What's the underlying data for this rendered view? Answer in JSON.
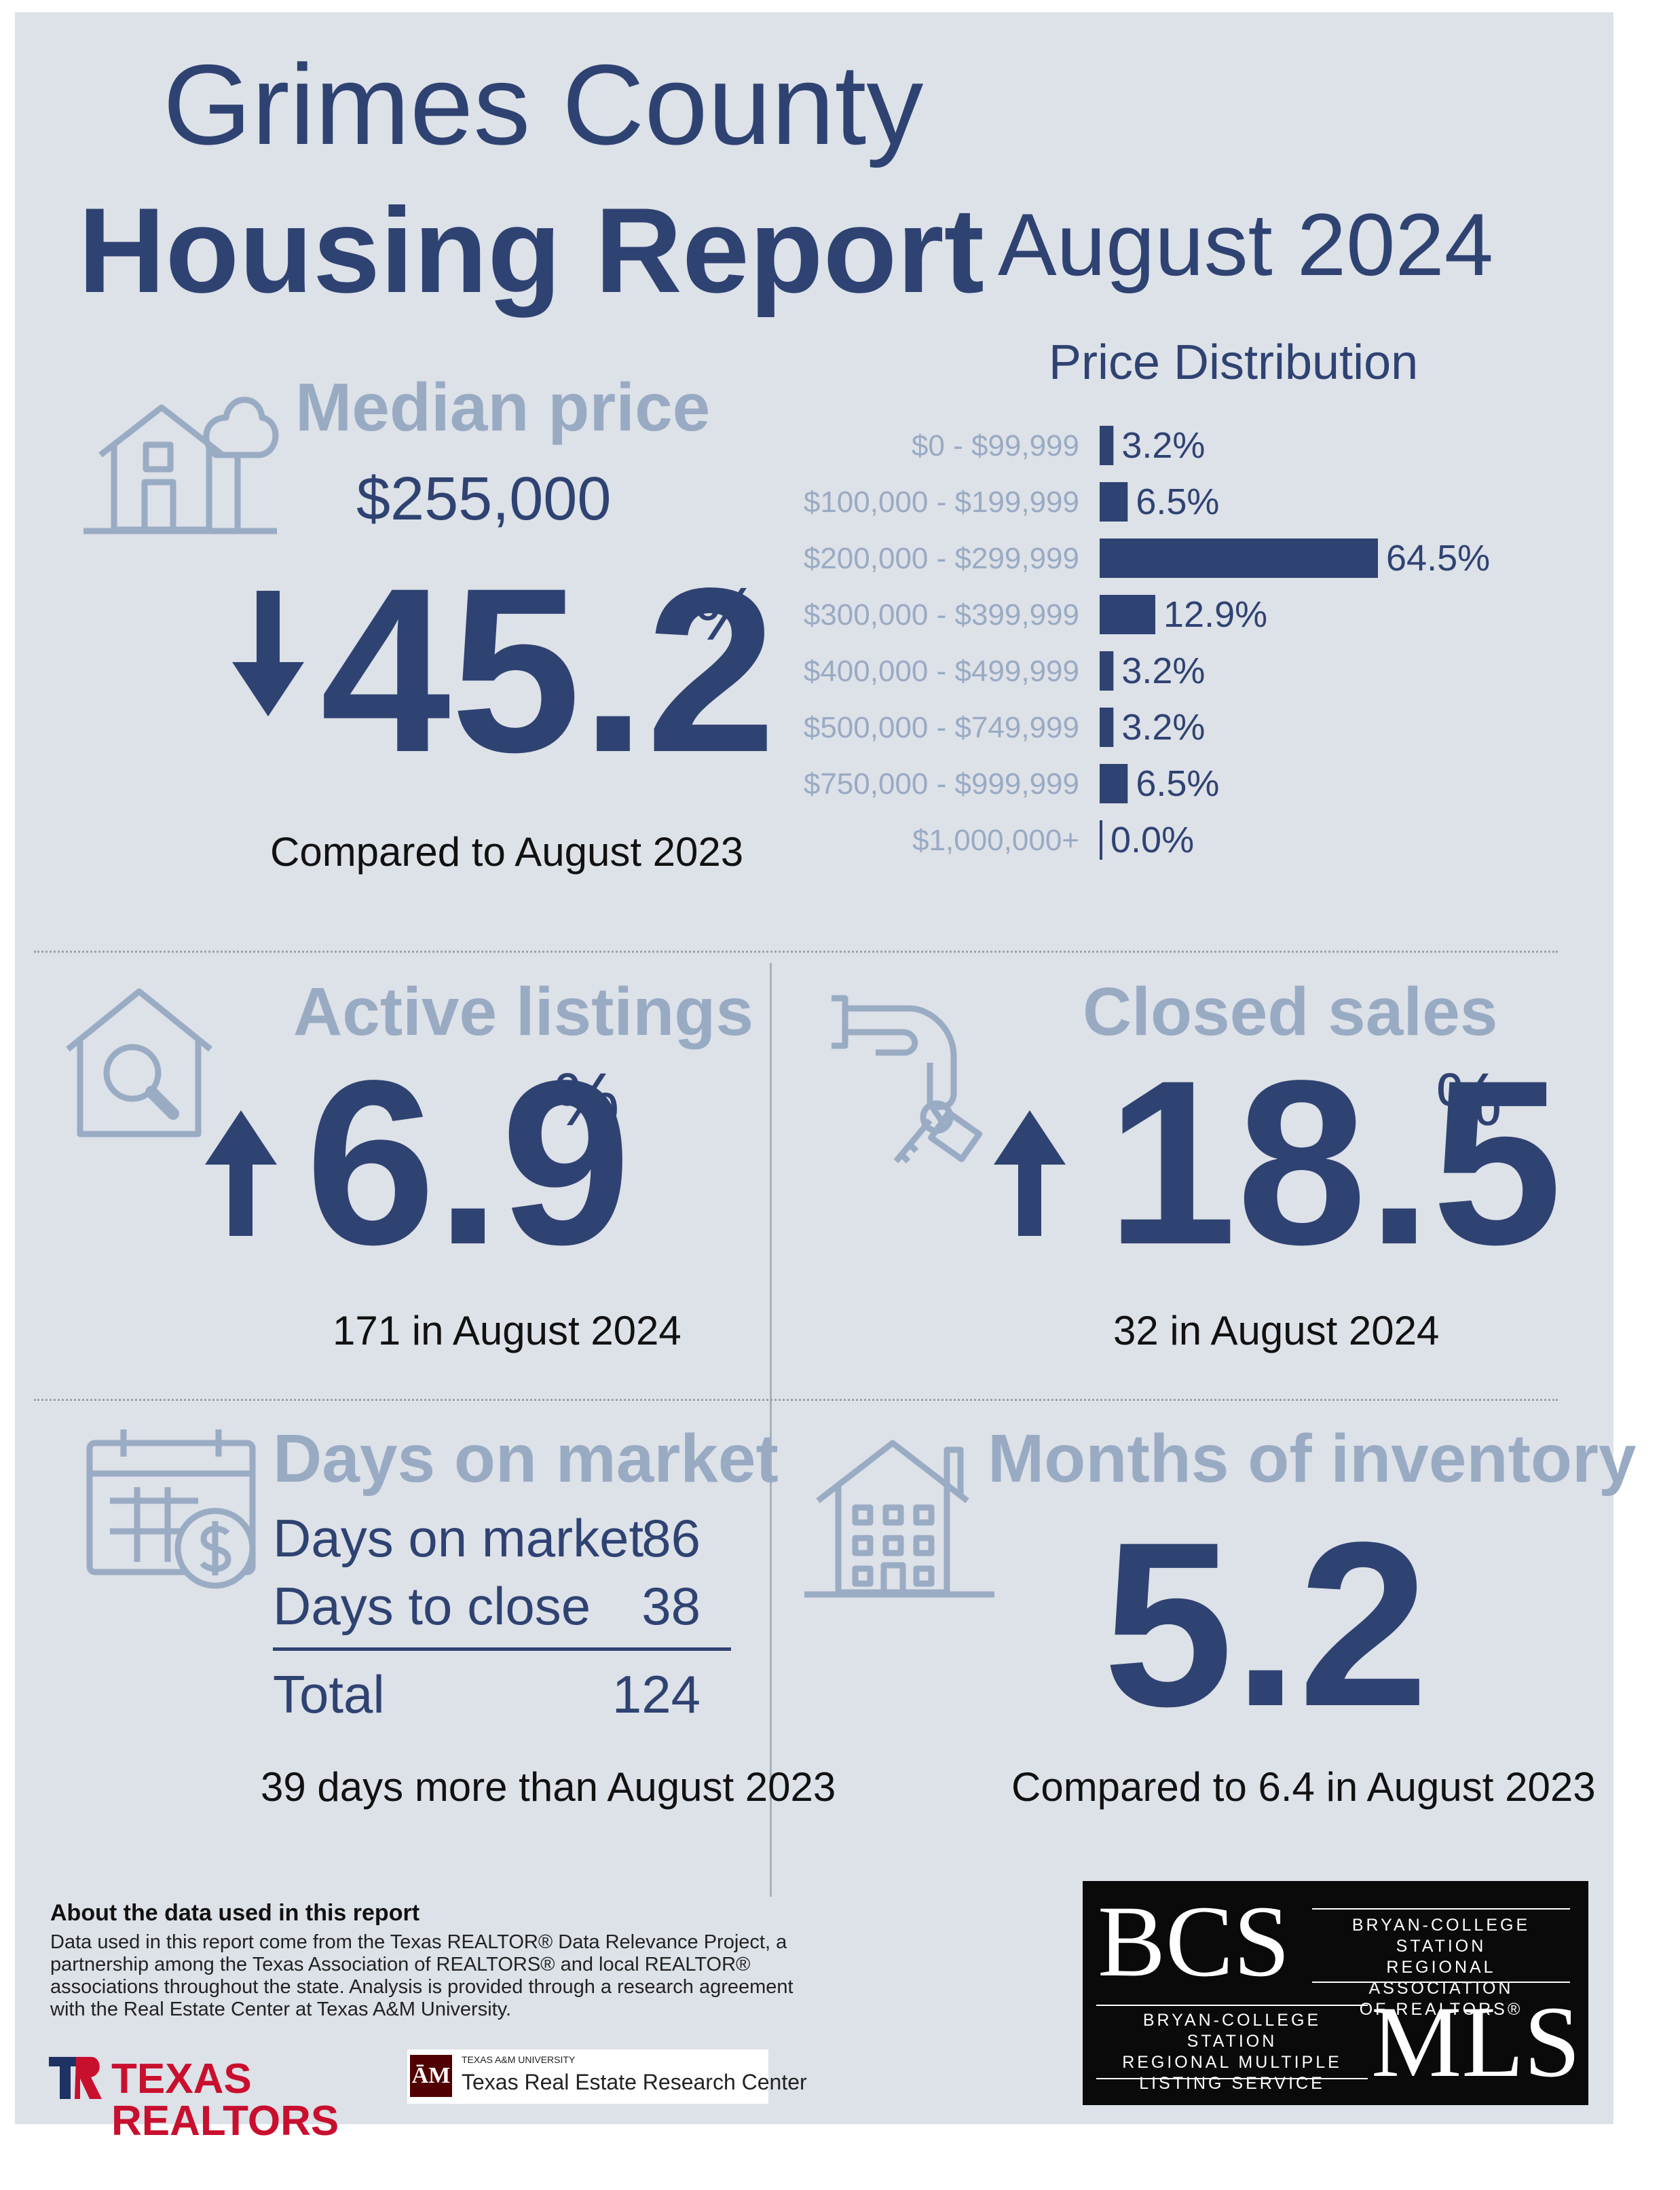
{
  "header": {
    "title_line1": "Grimes County",
    "title_line2": "Housing Report",
    "period": "August 2024"
  },
  "median_price": {
    "label": "Median price",
    "value": "$255,000",
    "change": "45.2",
    "percent_sign": "%",
    "direction": "down",
    "comparison": "Compared to August 2023"
  },
  "price_distribution": {
    "title": "Price Distribution",
    "bar_color": "#2f4372"
  },
  "chart_data": {
    "type": "bar",
    "orientation": "horizontal",
    "title": "Price Distribution",
    "categories": [
      "$0 - $99,999",
      "$100,000 - $199,999",
      "$200,000 - $299,999",
      "$300,000 - $399,999",
      "$400,000 - $499,999",
      "$500,000 - $749,999",
      "$750,000 - $999,999",
      "$1,000,000+"
    ],
    "values": [
      3.2,
      6.5,
      64.5,
      12.9,
      3.2,
      3.2,
      6.5,
      0.0
    ],
    "value_labels": [
      "3.2%",
      "6.5%",
      "64.5%",
      "12.9%",
      "3.2%",
      "3.2%",
      "6.5%",
      "0.0%"
    ],
    "xlim": [
      0,
      64.5
    ],
    "grid": false
  },
  "active_listings": {
    "label": "Active listings",
    "change": "6.9",
    "percent_sign": "%",
    "direction": "up",
    "detail": "171 in August 2024"
  },
  "closed_sales": {
    "label": "Closed sales",
    "change": "18.5",
    "percent_sign": "%",
    "direction": "up",
    "detail": "32 in August 2024"
  },
  "days_on_market": {
    "label": "Days on market",
    "rows": [
      {
        "label": "Days on market",
        "value": "86"
      },
      {
        "label": "Days to close",
        "value": "38"
      }
    ],
    "total_label": "Total",
    "total_value": "124",
    "comparison": "39 days more than August 2023"
  },
  "months_inventory": {
    "label": "Months of inventory",
    "value": "5.2",
    "comparison": "Compared to 6.4 in August 2023"
  },
  "about": {
    "heading": "About the data used in this report",
    "line1": "Data used in this report come from the Texas REALTOR® Data Relevance Project, a",
    "line2": "partnership among the Texas Association of REALTORS® and local REALTOR®",
    "line3": "associations throughout the state. Analysis is provided through a research agreement",
    "line4": "with the Real Estate Center at Texas A&M University."
  },
  "logos": {
    "texas_realtors": "TEXAS REALTORS",
    "tamu_small": "TEXAS A&M UNIVERSITY",
    "tamu_center": "Texas Real Estate Research Center",
    "bcs": "BCS",
    "bcs_assoc_1": "BRYAN-COLLEGE STATION",
    "bcs_assoc_2": "REGIONAL ASSOCIATION",
    "bcs_assoc_3": "OF REALTORS®",
    "mls": "MLS",
    "mls_1": "BRYAN-COLLEGE STATION",
    "mls_2": "REGIONAL MULTIPLE",
    "mls_3": "LISTING SERVICE"
  }
}
